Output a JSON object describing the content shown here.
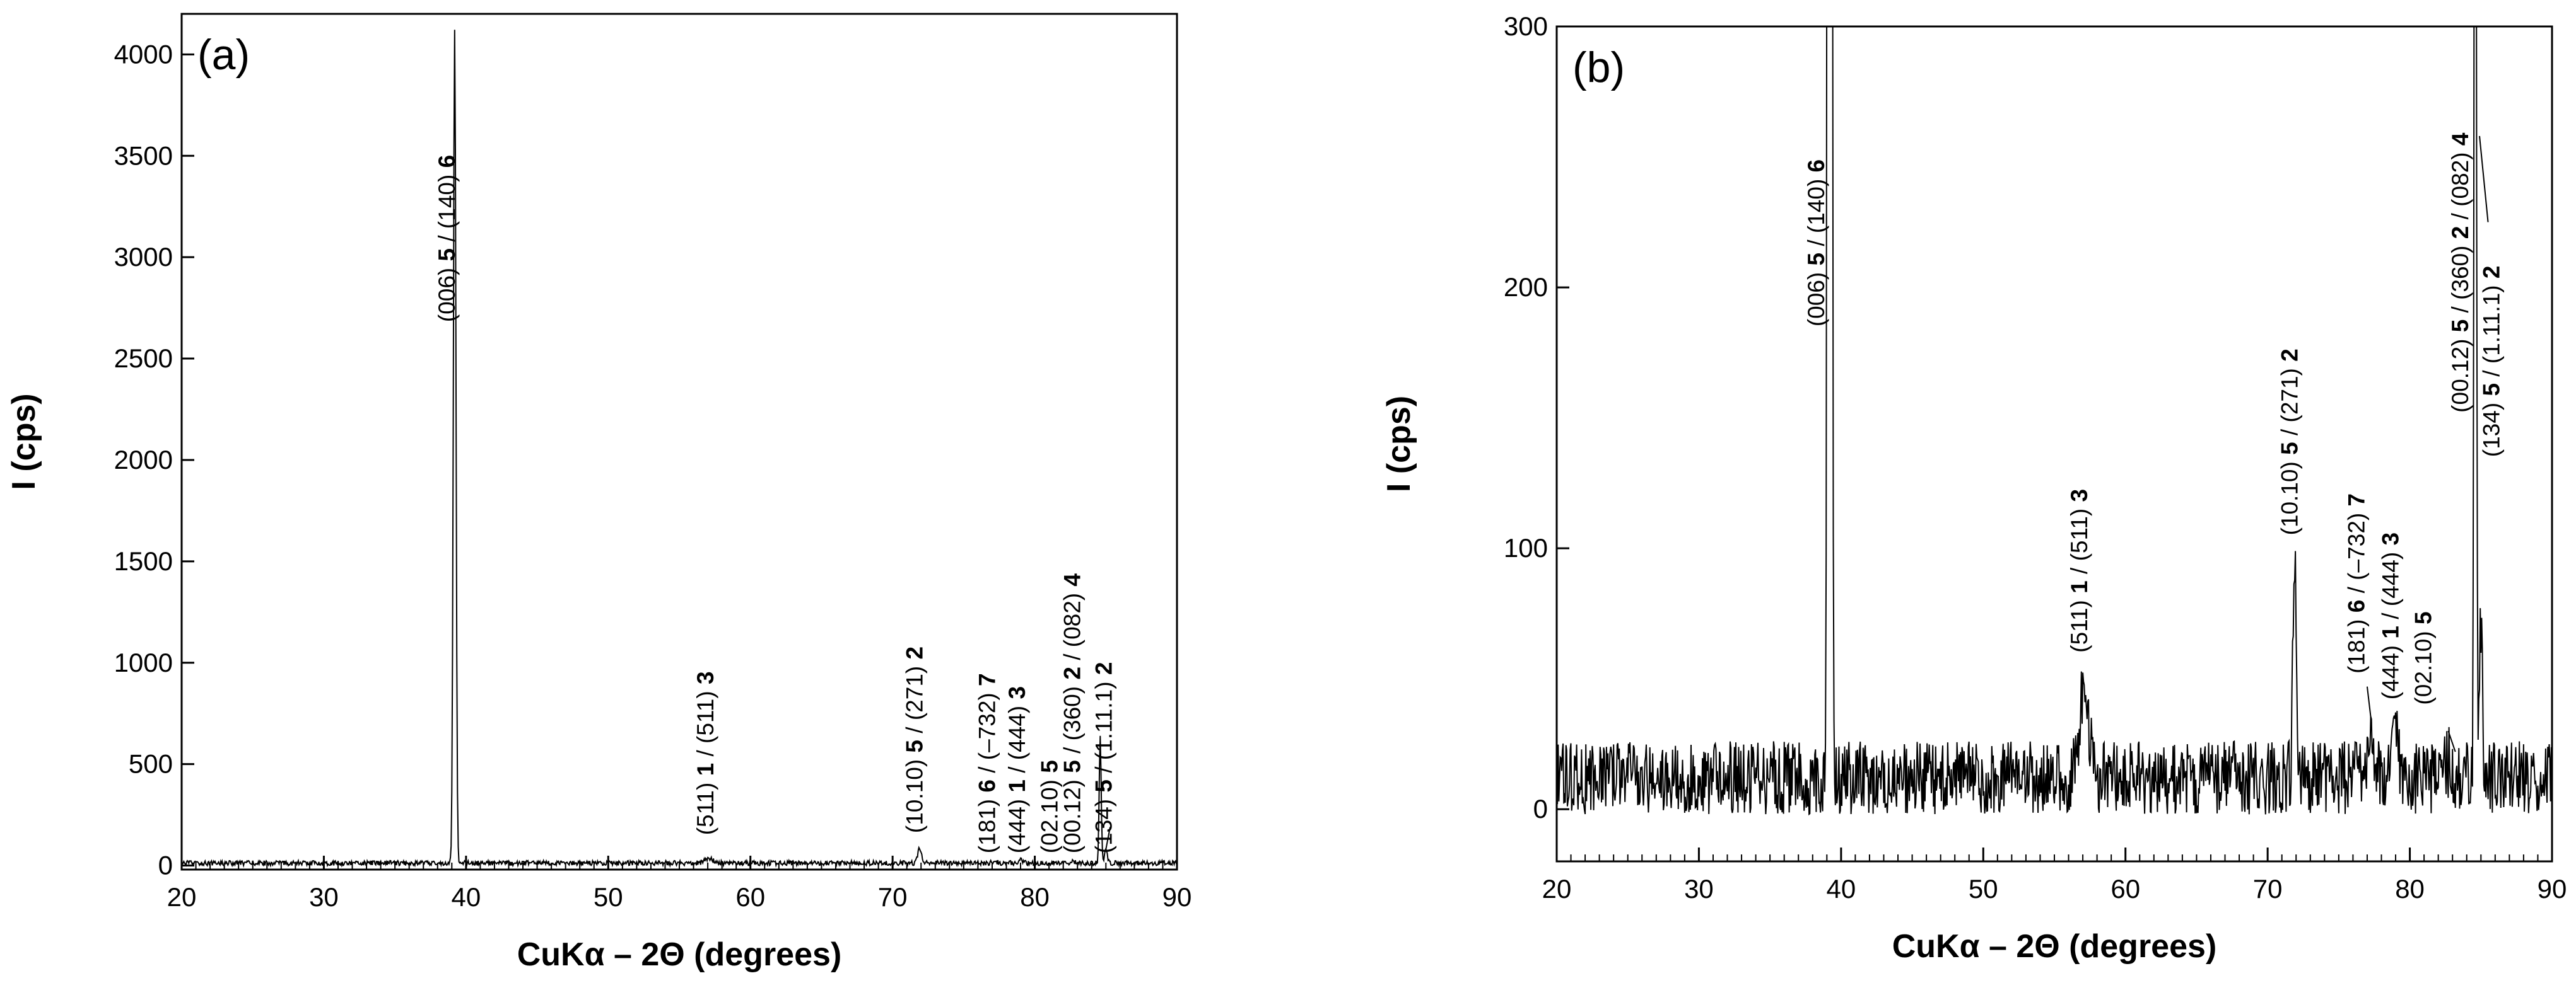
{
  "chart_data": [
    {
      "type": "line",
      "panel_label": "(a)",
      "xlabel": "CuKα – 2Θ (degrees)",
      "ylabel": "I (cps)",
      "xlim": [
        20,
        90
      ],
      "ylim": [
        -20,
        4200
      ],
      "xticks": [
        "20",
        "30",
        "40",
        "50",
        "60",
        "70",
        "80",
        "90"
      ],
      "yticks": [
        "0",
        "500",
        "1000",
        "1500",
        "2000",
        "2500",
        "3000",
        "3500",
        "4000"
      ],
      "grid": false,
      "series": [
        {
          "baseline": 12,
          "noise": 12,
          "peaks": [
            [
              39.2,
              4110,
              0.09
            ],
            [
              57.1,
              20,
              0.3
            ],
            [
              71.9,
              75,
              0.12
            ],
            [
              77.2,
              8,
              0.2
            ],
            [
              79.0,
              15,
              0.15
            ],
            [
              82.7,
              6,
              0.2
            ],
            [
              84.6,
              620,
              0.07
            ],
            [
              85.0,
              60,
              0.1
            ]
          ]
        }
      ],
      "annotations": [
        {
          "x": 39.2,
          "y": 2680,
          "parts": [
            {
              "t": "(006) ",
              "b": false
            },
            {
              "t": "5",
              "b": true
            },
            {
              "t": " / (140) ",
              "b": false
            },
            {
              "t": "6",
              "b": true
            }
          ]
        },
        {
          "x": 57.4,
          "y": 150,
          "parts": [
            {
              "t": "(511) ",
              "b": false
            },
            {
              "t": "1",
              "b": true
            },
            {
              "t": " / (511) ",
              "b": false
            },
            {
              "t": "3",
              "b": true
            }
          ]
        },
        {
          "x": 72.1,
          "y": 160,
          "parts": [
            {
              "t": "(10.10) ",
              "b": false
            },
            {
              "t": "5",
              "b": true
            },
            {
              "t": " / (271) ",
              "b": false
            },
            {
              "t": "2",
              "b": true
            }
          ]
        },
        {
          "x": 77.2,
          "y": 60,
          "parts": [
            {
              "t": "(181) ",
              "b": false
            },
            {
              "t": "6",
              "b": true
            },
            {
              "t": " / (–732) ",
              "b": false
            },
            {
              "t": "7",
              "b": true
            }
          ]
        },
        {
          "x": 79.3,
          "y": 60,
          "parts": [
            {
              "t": "(444) ",
              "b": false
            },
            {
              "t": "1",
              "b": true
            },
            {
              "t": " / (444) ",
              "b": false
            },
            {
              "t": "3",
              "b": true
            }
          ]
        },
        {
          "x": 81.6,
          "y": 60,
          "parts": [
            {
              "t": "(02.10) ",
              "b": false
            },
            {
              "t": "5",
              "b": true
            }
          ]
        },
        {
          "x": 83.2,
          "y": 60,
          "parts": [
            {
              "t": "(00.12) ",
              "b": false
            },
            {
              "t": "5",
              "b": true
            },
            {
              "t": " / (360) ",
              "b": false
            },
            {
              "t": "2",
              "b": true
            },
            {
              "t": " / (082) ",
              "b": false
            },
            {
              "t": "4",
              "b": true
            }
          ]
        },
        {
          "x": 85.4,
          "y": 60,
          "parts": [
            {
              "t": "(134) ",
              "b": false
            },
            {
              "t": "5",
              "b": true
            },
            {
              "t": " / (1.11.1) ",
              "b": false
            },
            {
              "t": "2",
              "b": true
            }
          ]
        }
      ],
      "leader_lines": [
        [
          [
            85.3,
            190
          ],
          [
            85.0,
            80
          ]
        ]
      ]
    },
    {
      "type": "line",
      "panel_label": "(b)",
      "xlabel": "CuKα – 2Θ (degrees)",
      "ylabel": "I (cps)",
      "xlim": [
        20,
        90
      ],
      "ylim": [
        -20,
        300
      ],
      "xticks": [
        "20",
        "30",
        "40",
        "50",
        "60",
        "70",
        "80",
        "90"
      ],
      "yticks": [
        "0",
        "100",
        "200",
        "300"
      ],
      "grid": false,
      "series": [
        {
          "baseline": 12,
          "noise": 14,
          "peaks": [
            [
              39.2,
              4110,
              0.09
            ],
            [
              57.1,
              38,
              0.3
            ],
            [
              71.9,
              85,
              0.12
            ],
            [
              77.2,
              12,
              0.2
            ],
            [
              79.0,
              22,
              0.15
            ],
            [
              82.7,
              6,
              0.2
            ],
            [
              84.6,
              620,
              0.07
            ],
            [
              85.0,
              60,
              0.1
            ]
          ]
        }
      ],
      "annotations": [
        {
          "x": 38.8,
          "y": 185,
          "parts": [
            {
              "t": "(006) ",
              "b": false
            },
            {
              "t": "5",
              "b": true
            },
            {
              "t": " / (140) ",
              "b": false
            },
            {
              "t": "6",
              "b": true
            }
          ]
        },
        {
          "x": 57.3,
          "y": 60,
          "parts": [
            {
              "t": "(511) ",
              "b": false
            },
            {
              "t": "1",
              "b": true
            },
            {
              "t": " / (511) ",
              "b": false
            },
            {
              "t": "3",
              "b": true
            }
          ]
        },
        {
          "x": 72.1,
          "y": 105,
          "parts": [
            {
              "t": "(10.10) ",
              "b": false
            },
            {
              "t": "5",
              "b": true
            },
            {
              "t": " / (271) ",
              "b": false
            },
            {
              "t": "2",
              "b": true
            }
          ]
        },
        {
          "x": 76.8,
          "y": 52,
          "parts": [
            {
              "t": "(181) ",
              "b": false
            },
            {
              "t": "6",
              "b": true
            },
            {
              "t": " / (–732) ",
              "b": false
            },
            {
              "t": "7",
              "b": true
            }
          ]
        },
        {
          "x": 79.2,
          "y": 42,
          "parts": [
            {
              "t": "(444) ",
              "b": false
            },
            {
              "t": "1",
              "b": true
            },
            {
              "t": " / (444) ",
              "b": false
            },
            {
              "t": "3",
              "b": true
            }
          ]
        },
        {
          "x": 81.5,
          "y": 40,
          "parts": [
            {
              "t": "(02.10) ",
              "b": false
            },
            {
              "t": "5",
              "b": true
            }
          ]
        },
        {
          "x": 84.1,
          "y": 152,
          "parts": [
            {
              "t": "(00.12) ",
              "b": false
            },
            {
              "t": "5",
              "b": true
            },
            {
              "t": " / (360) ",
              "b": false
            },
            {
              "t": "2",
              "b": true
            },
            {
              "t": " / (082) ",
              "b": false
            },
            {
              "t": "4",
              "b": true
            }
          ]
        },
        {
          "x": 86.3,
          "y": 135,
          "parts": [
            {
              "t": "(134) ",
              "b": false
            },
            {
              "t": "5",
              "b": true
            },
            {
              "t": " / (1.11.1) ",
              "b": false
            },
            {
              "t": "2",
              "b": true
            }
          ]
        }
      ],
      "leader_lines": [
        [
          [
            84.9,
            258
          ],
          [
            85.5,
            225
          ]
        ],
        [
          [
            77.0,
            47
          ],
          [
            77.3,
            33
          ]
        ],
        [
          [
            82.7,
            30
          ],
          [
            83.2,
            22
          ]
        ]
      ]
    }
  ]
}
